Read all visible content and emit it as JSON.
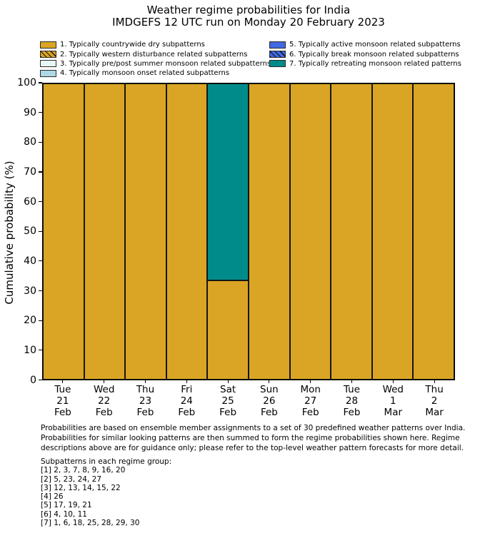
{
  "title": {
    "line1": "Weather regime probabilities for India",
    "line2": "IMDGEFS 12 UTC run on Monday 20 February 2023"
  },
  "chart_data": {
    "type": "bar",
    "stacked": true,
    "title": "Weather regime probabilities for India",
    "subtitle": "IMDGEFS 12 UTC run on Monday 20 February 2023",
    "xlabel": "",
    "ylabel": "Cumulative probability (%)",
    "ylim": [
      0,
      100
    ],
    "yticks": [
      0,
      10,
      20,
      30,
      40,
      50,
      60,
      70,
      80,
      90,
      100
    ],
    "grid": false,
    "legend_position": "top",
    "legend_columns": [
      4,
      3
    ],
    "edge_color": "#161616",
    "categories": [
      "Tue 21 Feb",
      "Wed 22 Feb",
      "Thu 23 Feb",
      "Fri 24 Feb",
      "Sat 25 Feb",
      "Sun 26 Feb",
      "Mon 27 Feb",
      "Tue 28 Feb",
      "Wed 1 Mar",
      "Thu 2 Mar"
    ],
    "series": [
      {
        "name": "1. Typically countrywide dry subpatterns",
        "color": "#DAA524",
        "hatch": false,
        "values": [
          100,
          100,
          100,
          100,
          33.3,
          100,
          100,
          100,
          100,
          100
        ]
      },
      {
        "name": "2. Typically western disturbance related subpatterns",
        "color": "#DAA524",
        "hatch": true,
        "values": [
          0,
          0,
          0,
          0,
          0,
          0,
          0,
          0,
          0,
          0
        ]
      },
      {
        "name": "3. Typically pre/post summer monsoon related subpatterns",
        "color": "#E8F6F8",
        "hatch": false,
        "values": [
          0,
          0,
          0,
          0,
          0,
          0,
          0,
          0,
          0,
          0
        ]
      },
      {
        "name": "4. Typically monsoon onset related subpatterns",
        "color": "#ADD8E6",
        "hatch": false,
        "values": [
          0,
          0,
          0,
          0,
          0,
          0,
          0,
          0,
          0,
          0
        ]
      },
      {
        "name": "5. Typically active monsoon related subpatterns",
        "color": "#4169E1",
        "hatch": false,
        "values": [
          0,
          0,
          0,
          0,
          0,
          0,
          0,
          0,
          0,
          0
        ]
      },
      {
        "name": "6. Typically break monsoon related subpatterns",
        "color": "#4169E1",
        "hatch": true,
        "values": [
          0,
          0,
          0,
          0,
          0,
          0,
          0,
          0,
          0,
          0
        ]
      },
      {
        "name": "7. Typically retreating monsoon related patterns",
        "color": "#008B8B",
        "hatch": false,
        "values": [
          0,
          0,
          0,
          0,
          66.7,
          0,
          0,
          0,
          0,
          0
        ]
      }
    ]
  },
  "footnote": {
    "lines": [
      "Probabilities are based on ensemble member assignments to a set of 30 predefined weather patterns over India.",
      "Probabilities for similar looking patterns are then summed to form the regime probabilities shown here. Regime",
      "descriptions above are for guidance only; please refer to the top-level weather pattern forecasts for more detail."
    ]
  },
  "subpatterns": {
    "heading": "Subpatterns in each regime group:",
    "groups": [
      "[1] 2, 3, 7, 8, 9, 16, 20",
      "[2] 5, 23, 24, 27",
      "[3] 12, 13, 14, 15, 22",
      "[4] 26",
      "[5] 17, 19, 21",
      "[6] 4, 10, 11",
      "[7] 1, 6, 18, 25, 28, 29, 30"
    ]
  }
}
